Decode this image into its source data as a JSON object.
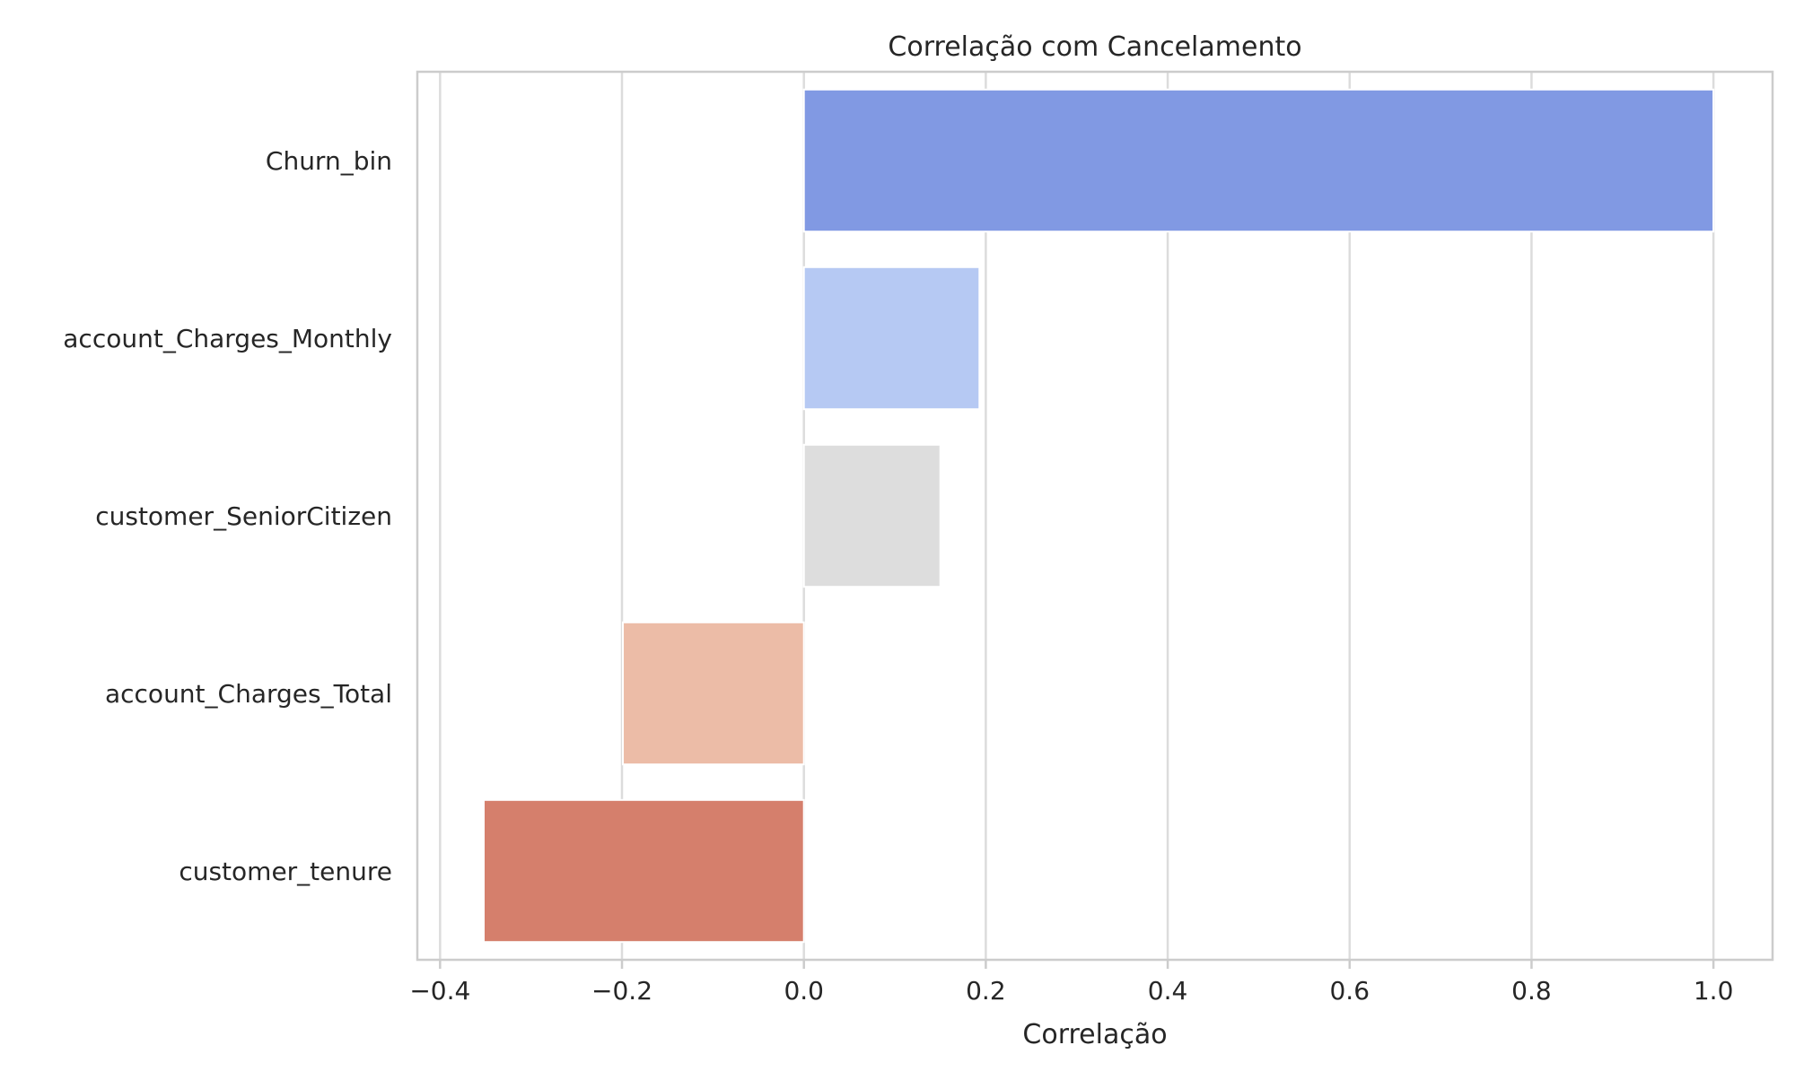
{
  "chart_data": {
    "type": "bar",
    "orientation": "horizontal",
    "title": "Correlação com Cancelamento",
    "xlabel": "Correlação",
    "ylabel": "",
    "categories": [
      "Churn_bin",
      "account_Charges_Monthly",
      "customer_SeniorCitizen",
      "account_Charges_Total",
      "customer_tenure"
    ],
    "values": [
      1.0,
      0.193,
      0.15,
      -0.199,
      -0.352
    ],
    "bar_colors": [
      "#8199e3",
      "#b6c9f3",
      "#dddddd",
      "#ecbca7",
      "#d57f6c"
    ],
    "xlim": [
      -0.425,
      1.065
    ],
    "xticks": [
      -0.4,
      -0.2,
      0.0,
      0.2,
      0.4,
      0.6,
      0.8,
      1.0
    ],
    "xtick_labels": [
      "−0.4",
      "−0.2",
      "0.0",
      "0.2",
      "0.4",
      "0.6",
      "0.8",
      "1.0"
    ],
    "grid": true,
    "colors": {
      "grid": "#dcdcdc",
      "frame": "#cccccc",
      "text": "#262626"
    }
  }
}
